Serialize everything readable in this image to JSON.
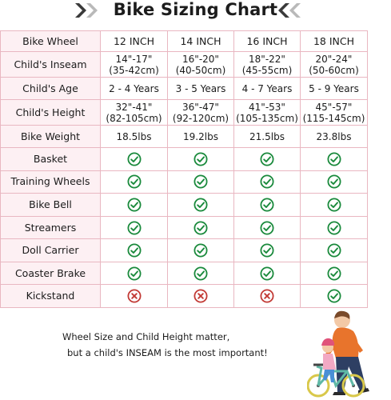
{
  "title": "Bike Sizing Chart",
  "colors": {
    "check": "#1a8a3c",
    "cross": "#c23a35",
    "border": "#e9b7c1",
    "label_bg": "#fdf0f3",
    "chevron": "#3a3a3a"
  },
  "table": {
    "header": {
      "label": "Bike Wheel",
      "sizes": [
        "12 INCH",
        "14 INCH",
        "16 INCH",
        "18 INCH"
      ]
    },
    "text_rows": [
      {
        "label": "Child's Inseam",
        "cells": [
          [
            "14\"-17\"",
            "(35-42cm)"
          ],
          [
            "16\"-20\"",
            "(40-50cm)"
          ],
          [
            "18\"-22\"",
            "(45-55cm)"
          ],
          [
            "20\"-24\"",
            "(50-60cm)"
          ]
        ]
      },
      {
        "label": "Child's Age",
        "cells": [
          [
            "2 - 4 Years"
          ],
          [
            "3 - 5 Years"
          ],
          [
            "4 - 7 Years"
          ],
          [
            "5 - 9 Years"
          ]
        ]
      },
      {
        "label": "Child's Height",
        "cells": [
          [
            "32\"-41\"",
            "(82-105cm)"
          ],
          [
            "36\"-47\"",
            "(92-120cm)"
          ],
          [
            "41\"-53\"",
            "(105-135cm)"
          ],
          [
            "45\"-57\"",
            "(115-145cm)"
          ]
        ]
      },
      {
        "label": "Bike Weight",
        "cells": [
          [
            "18.5lbs"
          ],
          [
            "19.2lbs"
          ],
          [
            "21.5lbs"
          ],
          [
            "23.8lbs"
          ]
        ]
      }
    ],
    "feature_rows": [
      {
        "label": "Basket",
        "icon": "check-circle-icon",
        "values": [
          true,
          true,
          true,
          true
        ]
      },
      {
        "label": "Training Wheels",
        "icon": "check-circle-icon",
        "values": [
          true,
          true,
          true,
          true
        ]
      },
      {
        "label": "Bike Bell",
        "icon": "check-circle-icon",
        "values": [
          true,
          true,
          true,
          true
        ]
      },
      {
        "label": "Streamers",
        "icon": "check-circle-icon",
        "values": [
          true,
          true,
          true,
          true
        ]
      },
      {
        "label": "Doll Carrier",
        "icon": "check-circle-icon",
        "values": [
          true,
          true,
          true,
          true
        ]
      },
      {
        "label": "Coaster Brake",
        "icon": "check-circle-icon",
        "values": [
          true,
          true,
          true,
          true
        ]
      },
      {
        "label": "Kickstand",
        "icon": "cross-circle-icon",
        "values": [
          false,
          false,
          false,
          true
        ]
      }
    ]
  },
  "note": {
    "line1": "Wheel Size and Child Height matter,",
    "line2": "but a child's INSEAM is the most important!"
  },
  "illustration": "parent-teaching-child-to-ride-bike-illustration"
}
